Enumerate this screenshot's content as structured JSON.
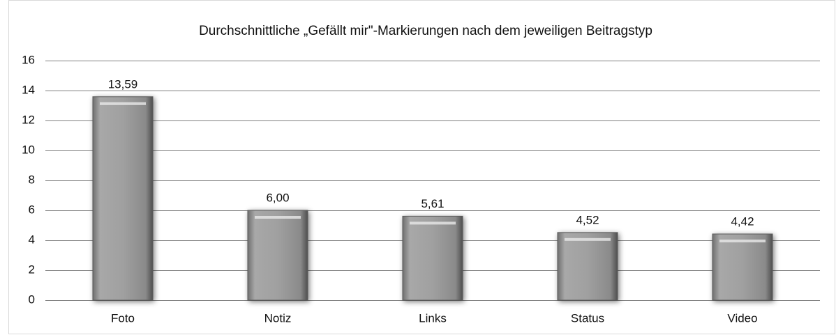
{
  "chart_data": {
    "type": "bar",
    "title": "Durchschnittliche „Gefällt mir\"-Markierungen nach dem jeweiligen Beitragstyp",
    "categories": [
      "Foto",
      "Notiz",
      "Links",
      "Status",
      "Video"
    ],
    "values": [
      13.59,
      6.0,
      5.61,
      4.52,
      4.42
    ],
    "value_labels": [
      "13,59",
      "6,00",
      "5,61",
      "4,52",
      "4,42"
    ],
    "color": "#9a9a9a",
    "ylim": [
      0,
      16
    ],
    "yticks": [
      0,
      2,
      4,
      6,
      8,
      10,
      12,
      14,
      16
    ],
    "grid": true
  }
}
